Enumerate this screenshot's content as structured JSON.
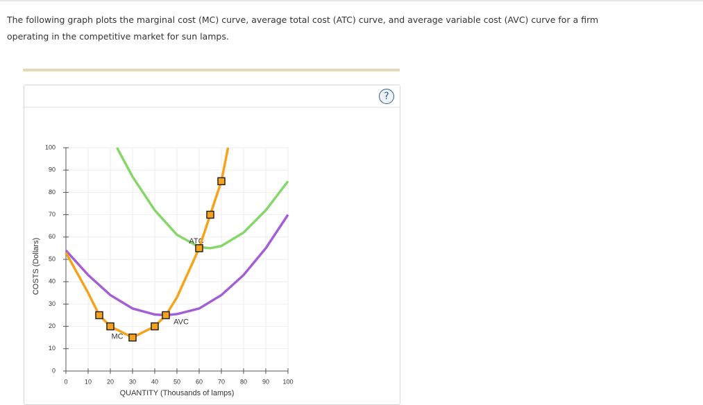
{
  "intro_text": "The following graph plots the marginal cost (MC) curve, average total cost (ATC) curve, and average variable cost (AVC) curve for a firm operating in the competitive market for sun lamps.",
  "help_icon": "?",
  "chart_data": {
    "type": "line",
    "xlabel": "QUANTITY (Thousands of lamps)",
    "ylabel": "COSTS (Dollars)",
    "xlim": [
      0,
      100
    ],
    "ylim": [
      0,
      100
    ],
    "xticks": [
      0,
      10,
      20,
      30,
      40,
      50,
      60,
      70,
      80,
      90,
      100
    ],
    "yticks": [
      0,
      10,
      20,
      30,
      40,
      50,
      60,
      70,
      80,
      90,
      100
    ],
    "grid": true,
    "series": [
      {
        "name": "ATC",
        "color": "#86d66a",
        "x": [
          23,
          30,
          40,
          50,
          60,
          65,
          70,
          80,
          90,
          100
        ],
        "values": [
          100,
          87,
          72,
          61,
          55.5,
          55,
          56,
          62,
          72,
          85
        ]
      },
      {
        "name": "AVC",
        "color": "#a55fd6",
        "x": [
          0,
          10,
          20,
          30,
          40,
          45,
          50,
          60,
          70,
          80,
          90,
          100
        ],
        "values": [
          54,
          43,
          34,
          28,
          25.3,
          25,
          25.5,
          28,
          34,
          43,
          55,
          70
        ]
      },
      {
        "name": "MC",
        "color": "#f7a21b",
        "x": [
          0,
          10,
          15,
          20,
          30,
          40,
          45,
          50,
          60,
          65,
          70,
          73
        ],
        "values": [
          53,
          35,
          25,
          20,
          15,
          20,
          25,
          33,
          55,
          70,
          85,
          100
        ]
      }
    ],
    "markers": {
      "type": "scatter",
      "marker": "square",
      "color": "#f7a21b",
      "x": [
        15,
        20,
        30,
        40,
        45,
        60,
        65,
        70
      ],
      "values": [
        25,
        20,
        15,
        20,
        25,
        55,
        70,
        85
      ]
    }
  }
}
